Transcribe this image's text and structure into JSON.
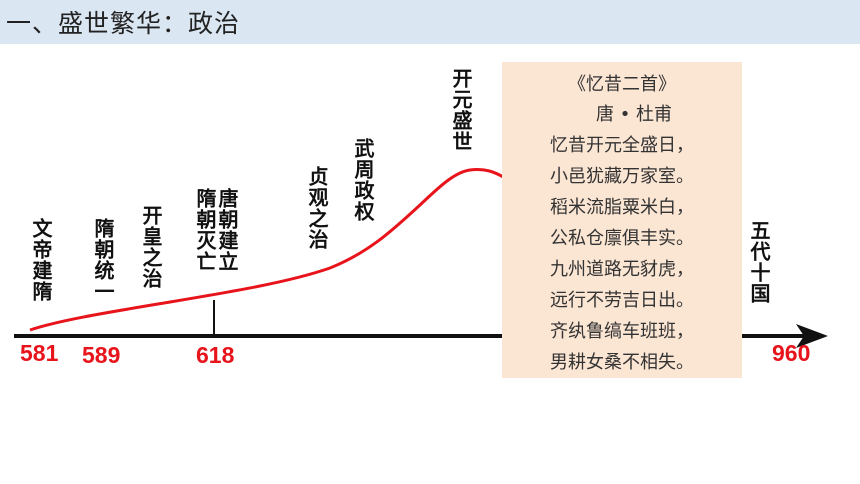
{
  "header": {
    "title": "一、盛世繁华：政治"
  },
  "events": {
    "wendi_jiansui": "文帝建隋",
    "suichao_tongyi": "隋朝统一",
    "kaihuang_zhizhi": "开皇之治",
    "suiwang_tangli_col1": "隋朝灭亡",
    "suiwang_tangli_col2": "唐朝建立",
    "zhenguan_zhizhi": "贞观之治",
    "wuzhou_zhengquan": "武周政权",
    "kaiyuan_shengshi": "开元盛世",
    "wudai_shiguo": "五代十国"
  },
  "years": {
    "y581": "581",
    "y589": "589",
    "y618": "618",
    "y960": "960"
  },
  "poem": {
    "title": "《忆昔二首》",
    "author": "唐 • 杜甫",
    "lines": [
      "忆昔开元全盛日，",
      "小邑犹藏万家室。",
      "稻米流脂粟米白，",
      "公私仓廪俱丰实。",
      "九州道路无豺虎，",
      "远行不劳吉日出。",
      "齐纨鲁缟车班班，",
      "男耕女桑不相失。"
    ]
  },
  "colors": {
    "curve": "#e8141c",
    "year_text": "#e8141c",
    "axis": "#111111",
    "header_bg": "#dbe6f3",
    "poem_bg": "#fbe5d3"
  }
}
